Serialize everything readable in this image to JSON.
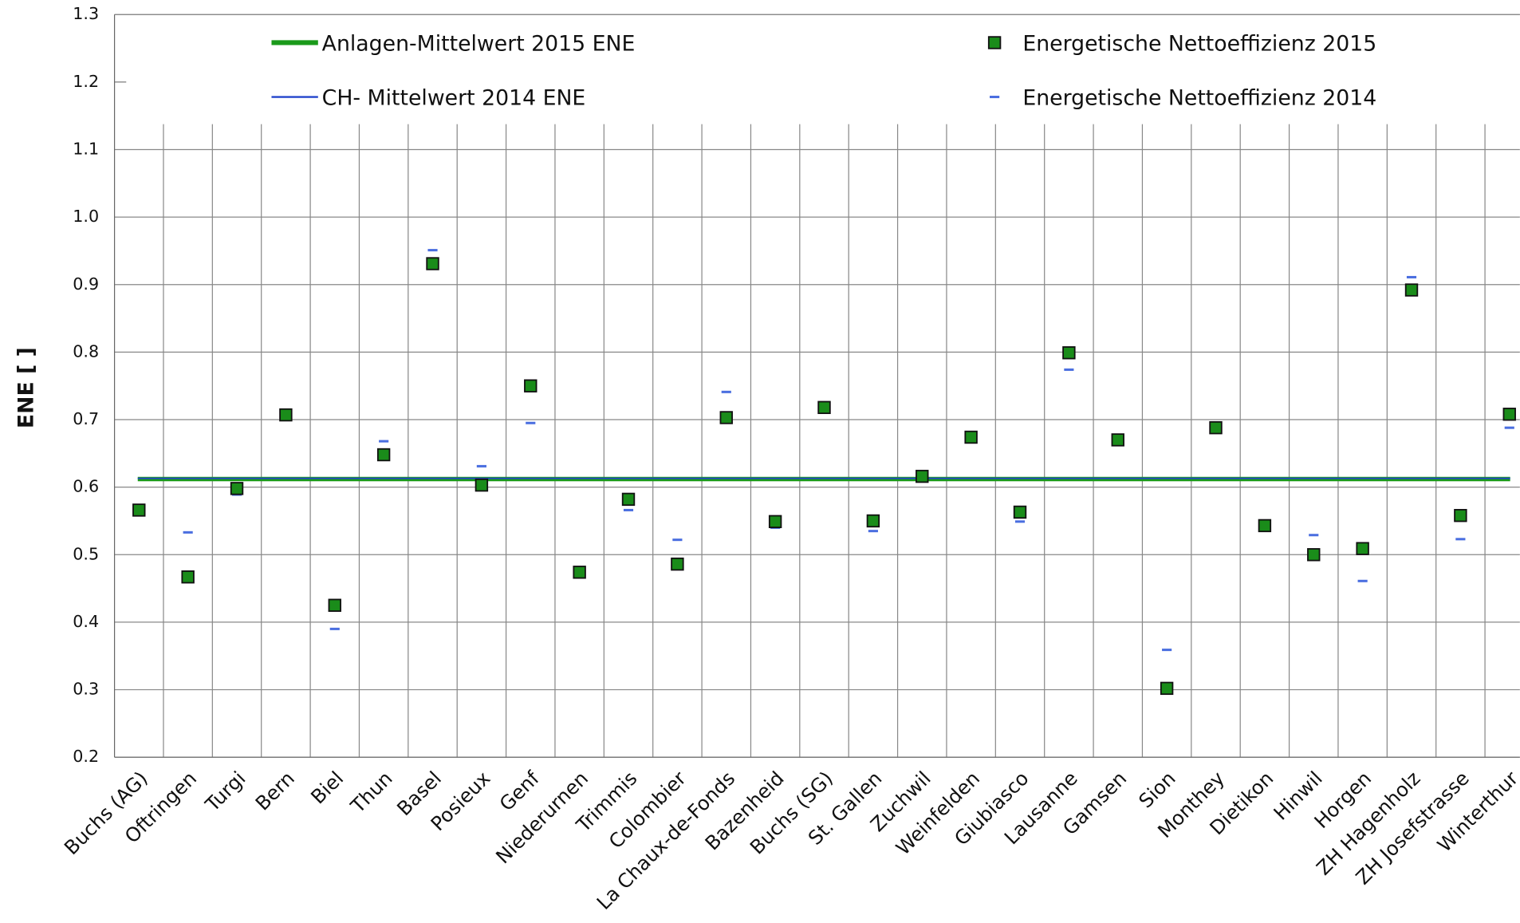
{
  "chart_data": {
    "type": "scatter",
    "y_label": "ENE [ ]",
    "categories": [
      "Buchs (AG)",
      "Oftringen",
      "Turgi",
      "Bern",
      "Biel",
      "Thun",
      "Basel",
      "Posieux",
      "Genf",
      "Niederurnen",
      "Trimmis",
      "Colombier",
      "La Chaux-de-Fonds",
      "Bazenheid",
      "Buchs (SG)",
      "St. Gallen",
      "Zuchwil",
      "Weinfelden",
      "Giubiasco",
      "Lausanne",
      "Gamsen",
      "Sion",
      "Monthey",
      "Dietikon",
      "Hinwil",
      "Horgen",
      "ZH Hagenholz",
      "ZH Josefstrasse",
      "Winterthur"
    ],
    "series": [
      {
        "name": "Energetische Nettoeffizienz 2015",
        "color": "#1a8c1a",
        "marker": "square",
        "values": [
          0.566,
          0.467,
          0.598,
          0.707,
          0.425,
          0.648,
          0.931,
          0.603,
          0.75,
          0.474,
          0.582,
          0.486,
          0.703,
          0.549,
          0.718,
          0.55,
          0.616,
          0.674,
          0.563,
          0.799,
          0.67,
          0.302,
          0.688,
          0.543,
          0.5,
          0.509,
          0.892,
          0.558,
          0.708
        ]
      },
      {
        "name": "Energetische Nettoeffizienz 2014",
        "color": "#4a6ee0",
        "marker": "dash",
        "values": [
          0.56,
          0.533,
          0.589,
          0.707,
          0.39,
          0.668,
          0.951,
          0.631,
          0.695,
          0.471,
          0.566,
          0.522,
          0.741,
          0.54,
          0.714,
          0.535,
          0.618,
          0.667,
          0.549,
          0.774,
          0.667,
          0.359,
          0.693,
          0.537,
          0.529,
          0.461,
          0.911,
          0.523,
          0.688
        ]
      }
    ],
    "reference_lines": [
      {
        "name": "Anlagen-Mittelwert 2015 ENE",
        "color": "#1a9a1a",
        "value": 0.612
      },
      {
        "name": "CH- Mittelwert 2014 ENE",
        "color": "#2244cc",
        "value": 0.613
      }
    ],
    "ylim": [
      0.2,
      1.3
    ],
    "yticks": [
      0.2,
      0.3,
      0.4,
      0.5,
      0.6,
      0.7,
      0.8,
      0.9,
      {
        "value": 1,
        "label": "1.0"
      },
      1.1,
      1.2,
      1.3
    ],
    "grid": true
  }
}
